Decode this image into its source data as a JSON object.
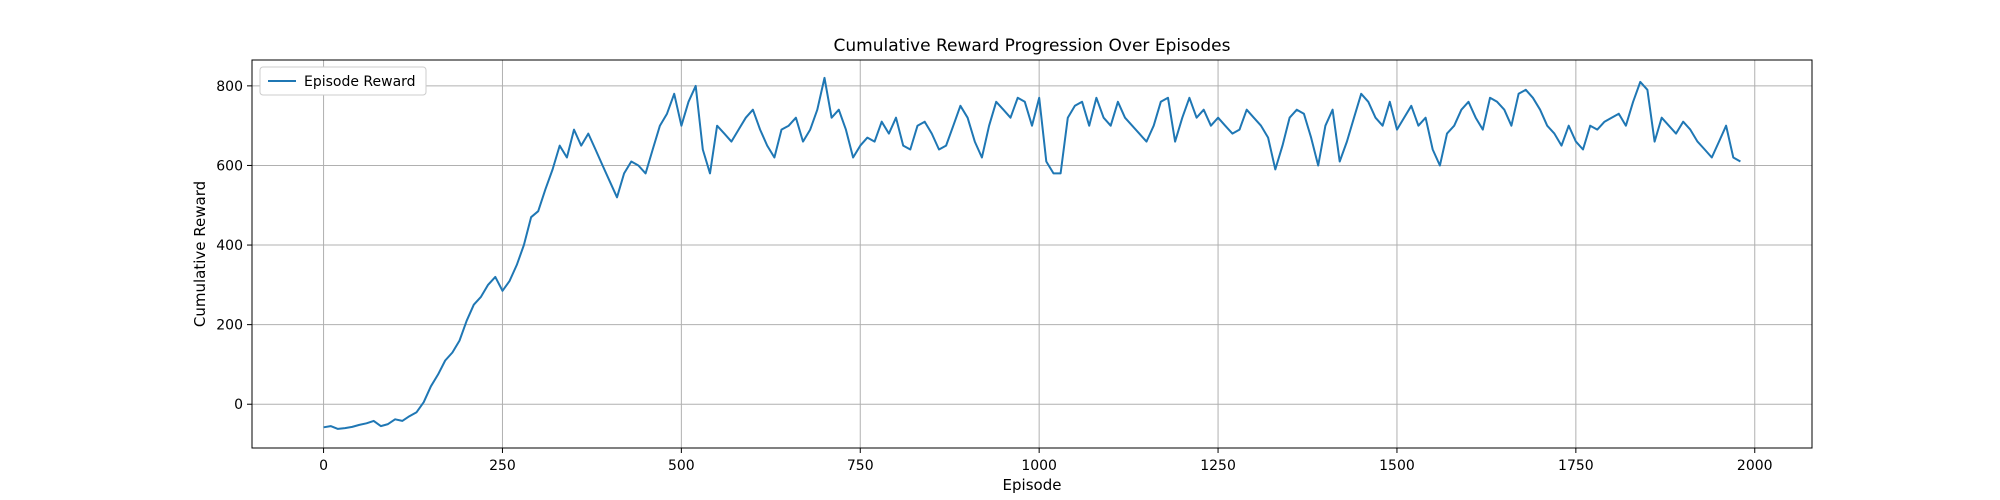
{
  "chart_data": {
    "type": "line",
    "title": "Cumulative Reward Progression Over Episodes",
    "xlabel": "Episode",
    "ylabel": "Cumulative Reward",
    "xlim": [
      -100,
      2080
    ],
    "ylim": [
      -110,
      865
    ],
    "x_ticks": [
      0,
      250,
      500,
      750,
      1000,
      1250,
      1500,
      1750,
      2000
    ],
    "y_ticks": [
      0,
      200,
      400,
      600,
      800
    ],
    "grid": true,
    "legend_position": "top-left",
    "series": [
      {
        "name": "Episode Reward",
        "color": "#1f77b4",
        "x": [
          0,
          10,
          20,
          30,
          40,
          50,
          60,
          70,
          80,
          90,
          100,
          110,
          120,
          130,
          140,
          150,
          160,
          170,
          180,
          190,
          200,
          210,
          220,
          230,
          240,
          250,
          260,
          270,
          280,
          290,
          300,
          310,
          320,
          330,
          340,
          350,
          360,
          370,
          380,
          390,
          400,
          410,
          420,
          430,
          440,
          450,
          460,
          470,
          480,
          490,
          500,
          510,
          520,
          530,
          540,
          550,
          560,
          570,
          580,
          590,
          600,
          610,
          620,
          630,
          640,
          650,
          660,
          670,
          680,
          690,
          700,
          710,
          720,
          730,
          740,
          750,
          760,
          770,
          780,
          790,
          800,
          810,
          820,
          830,
          840,
          850,
          860,
          870,
          880,
          890,
          900,
          910,
          920,
          930,
          940,
          950,
          960,
          970,
          980,
          990,
          1000,
          1010,
          1020,
          1030,
          1040,
          1050,
          1060,
          1070,
          1080,
          1090,
          1100,
          1110,
          1120,
          1130,
          1140,
          1150,
          1160,
          1170,
          1180,
          1190,
          1200,
          1210,
          1220,
          1230,
          1240,
          1250,
          1260,
          1270,
          1280,
          1290,
          1300,
          1310,
          1320,
          1330,
          1340,
          1350,
          1360,
          1370,
          1380,
          1390,
          1400,
          1410,
          1420,
          1430,
          1440,
          1450,
          1460,
          1470,
          1480,
          1490,
          1500,
          1510,
          1520,
          1530,
          1540,
          1550,
          1560,
          1570,
          1580,
          1590,
          1600,
          1610,
          1620,
          1630,
          1640,
          1650,
          1660,
          1670,
          1680,
          1690,
          1700,
          1710,
          1720,
          1730,
          1740,
          1750,
          1760,
          1770,
          1780,
          1790,
          1800,
          1810,
          1820,
          1830,
          1840,
          1850,
          1860,
          1870,
          1880,
          1890,
          1900,
          1910,
          1920,
          1930,
          1940,
          1950,
          1960,
          1970,
          1980
        ],
        "y": [
          -58,
          -55,
          -62,
          -60,
          -57,
          -52,
          -48,
          -42,
          -55,
          -50,
          -38,
          -42,
          -30,
          -20,
          5,
          45,
          75,
          110,
          130,
          160,
          210,
          250,
          270,
          300,
          320,
          285,
          310,
          350,
          400,
          470,
          485,
          540,
          590,
          650,
          620,
          690,
          650,
          680,
          640,
          600,
          560,
          520,
          580,
          610,
          600,
          580,
          640,
          700,
          730,
          780,
          700,
          760,
          800,
          640,
          580,
          700,
          680,
          660,
          690,
          720,
          740,
          690,
          650,
          620,
          690,
          700,
          720,
          660,
          690,
          740,
          820,
          720,
          740,
          690,
          620,
          650,
          670,
          660,
          710,
          680,
          720,
          650,
          640,
          700,
          710,
          680,
          640,
          650,
          700,
          750,
          720,
          660,
          620,
          700,
          760,
          740,
          720,
          770,
          760,
          700,
          770,
          610,
          580,
          580,
          720,
          750,
          760,
          700,
          770,
          720,
          700,
          760,
          720,
          700,
          680,
          660,
          700,
          760,
          770,
          660,
          720,
          770,
          720,
          740,
          700,
          720,
          700,
          680,
          690,
          740,
          720,
          700,
          670,
          590,
          650,
          720,
          740,
          730,
          670,
          600,
          700,
          740,
          610,
          660,
          720,
          780,
          760,
          720,
          700,
          760,
          690,
          720,
          750,
          700,
          720,
          640,
          600,
          680,
          700,
          740,
          760,
          720,
          690,
          770,
          760,
          740,
          700,
          780,
          790,
          770,
          740,
          700,
          680,
          650,
          700,
          660,
          640,
          700,
          690,
          710,
          720,
          730,
          700,
          760,
          810,
          790,
          660,
          720,
          700,
          680,
          710,
          690,
          660,
          640,
          620,
          660,
          700,
          620,
          610
        ]
      }
    ]
  }
}
